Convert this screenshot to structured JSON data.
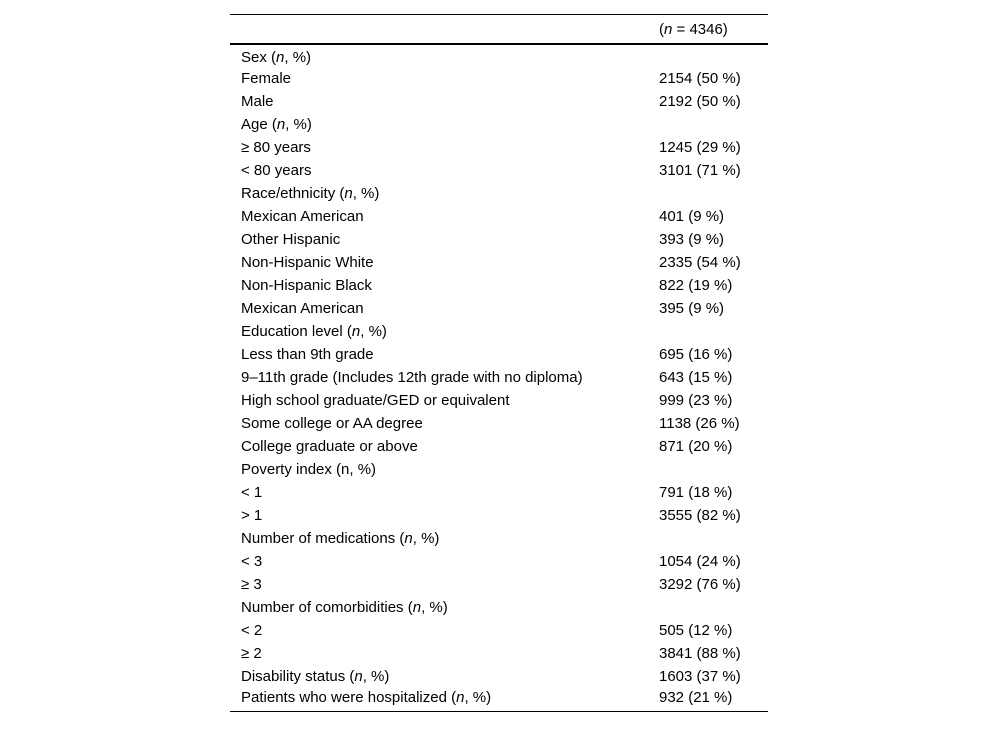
{
  "table": {
    "header": {
      "pre": "(",
      "it": "n",
      "post": " = 4346)"
    },
    "rows": [
      {
        "pre": "Sex (",
        "it": "n",
        "post": ", %)",
        "value": ""
      },
      {
        "pre": "Female",
        "it": "",
        "post": "",
        "value": "2154 (50 %)"
      },
      {
        "pre": "Male",
        "it": "",
        "post": "",
        "value": "2192 (50 %)"
      },
      {
        "pre": "Age (",
        "it": "n",
        "post": ", %)",
        "value": ""
      },
      {
        "pre": "≥ 80 years",
        "it": "",
        "post": "",
        "value": "1245 (29 %)"
      },
      {
        "pre": "< 80 years",
        "it": "",
        "post": "",
        "value": "3101 (71 %)"
      },
      {
        "pre": "Race/ethnicity (",
        "it": "n",
        "post": ", %)",
        "value": ""
      },
      {
        "pre": "Mexican American",
        "it": "",
        "post": "",
        "value": "401 (9 %)"
      },
      {
        "pre": "Other Hispanic",
        "it": "",
        "post": "",
        "value": "393 (9 %)"
      },
      {
        "pre": "Non-Hispanic White",
        "it": "",
        "post": "",
        "value": "2335 (54 %)"
      },
      {
        "pre": "Non-Hispanic Black",
        "it": "",
        "post": "",
        "value": "822 (19 %)"
      },
      {
        "pre": "Mexican American",
        "it": "",
        "post": "",
        "value": "395 (9 %)"
      },
      {
        "pre": "Education level (",
        "it": "n",
        "post": ", %)",
        "value": ""
      },
      {
        "pre": "Less than 9th grade",
        "it": "",
        "post": "",
        "value": "695 (16 %)"
      },
      {
        "pre": "9–11th grade (Includes 12th grade with no diploma)",
        "it": "",
        "post": "",
        "value": "643 (15 %)"
      },
      {
        "pre": "High school graduate/GED or equivalent",
        "it": "",
        "post": "",
        "value": "999 (23 %)"
      },
      {
        "pre": "Some college or AA degree",
        "it": "",
        "post": "",
        "value": "1138 (26 %)"
      },
      {
        "pre": "College graduate or above",
        "it": "",
        "post": "",
        "value": "871 (20 %)"
      },
      {
        "pre": "Poverty index (n, %)",
        "it": "",
        "post": "",
        "value": ""
      },
      {
        "pre": "< 1",
        "it": "",
        "post": "",
        "value": "791 (18 %)"
      },
      {
        "pre": "> 1",
        "it": "",
        "post": "",
        "value": "3555 (82 %)"
      },
      {
        "pre": "Number of medications (",
        "it": "n",
        "post": ", %)",
        "value": ""
      },
      {
        "pre": "< 3",
        "it": "",
        "post": "",
        "value": "1054 (24 %)"
      },
      {
        "pre": "≥ 3",
        "it": "",
        "post": "",
        "value": "3292 (76 %)"
      },
      {
        "pre": "Number of comorbidities (",
        "it": "n",
        "post": ", %)",
        "value": ""
      },
      {
        "pre": "< 2",
        "it": "",
        "post": "",
        "value": "505 (12 %)"
      },
      {
        "pre": "≥ 2",
        "it": "",
        "post": "",
        "value": "3841 (88 %)"
      },
      {
        "pre": "Disability status (",
        "it": "n",
        "post": ", %)",
        "value": "1603 (37 %)"
      },
      {
        "pre": "Patients who were hospitalized (",
        "it": "n",
        "post": ", %)",
        "value": "932 (21 %)"
      }
    ]
  }
}
